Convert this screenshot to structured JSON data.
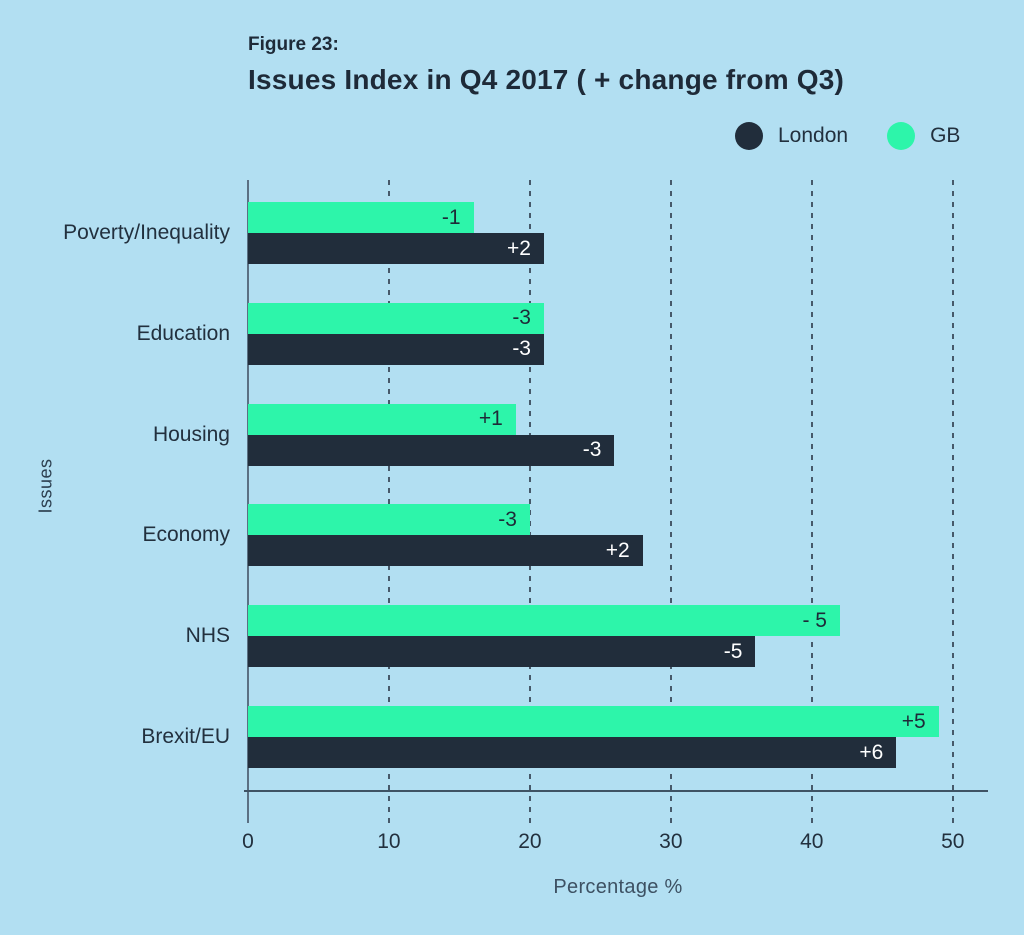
{
  "header": {
    "figure_label": "Figure 23:",
    "title": "Issues Index in Q4 2017 ( + change from Q3)"
  },
  "legend": [
    {
      "name": "London",
      "color": "#212d3b"
    },
    {
      "name": "GB",
      "color": "#2df5aa"
    }
  ],
  "colors": {
    "background": "#b2dff2",
    "london_bar": "#212d3b",
    "gb_bar": "#2df5aa",
    "text": "#1e2a38",
    "gridline": "#46596a"
  },
  "chart_data": {
    "type": "bar",
    "orientation": "horizontal",
    "title": "Issues Index in Q4 2017 ( + change from Q3)",
    "xlabel": "Percentage %",
    "ylabel": "Issues",
    "xlim": [
      0,
      52.5
    ],
    "xticks": [
      0,
      10,
      20,
      30,
      40,
      50
    ],
    "grid": "dashed-vertical",
    "legend_position": "top-right",
    "categories": [
      "Poverty/Inequality",
      "Education",
      "Housing",
      "Economy",
      "NHS",
      "Brexit/EU"
    ],
    "series": [
      {
        "name": "GB",
        "color": "#2df5aa",
        "label_color": "#1e2a38",
        "values": [
          16,
          21,
          19,
          20,
          42,
          49
        ],
        "labels": [
          "-1",
          "-3",
          "+1",
          "-3",
          "- 5",
          "+5"
        ]
      },
      {
        "name": "London",
        "color": "#212d3b",
        "label_color": "#ffffff",
        "values": [
          21,
          21,
          26,
          28,
          36,
          46
        ],
        "labels": [
          "+2",
          "-3",
          "-3",
          "+2",
          "-5",
          "+6"
        ]
      }
    ]
  }
}
